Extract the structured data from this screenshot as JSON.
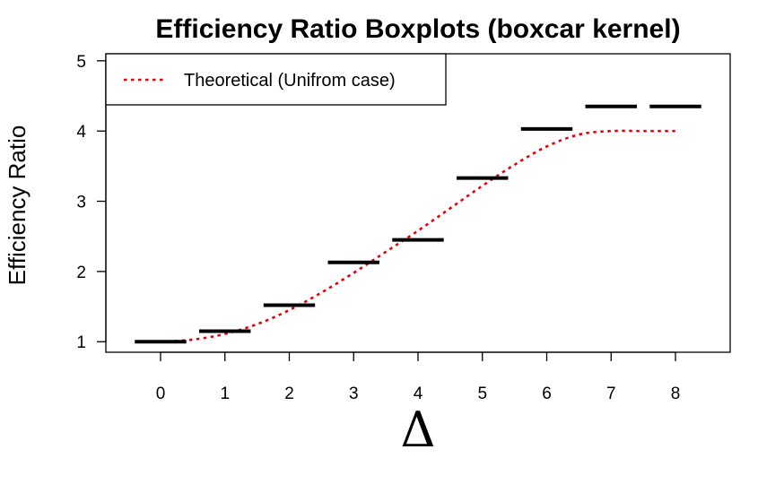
{
  "chart_data": {
    "type": "boxplot",
    "title": "Efficiency Ratio Boxplots (boxcar kernel)",
    "xlabel": "Δ",
    "ylabel": "Efficiency Ratio",
    "categories": [
      "0",
      "1",
      "2",
      "3",
      "4",
      "5",
      "6",
      "7",
      "8"
    ],
    "x": [
      0,
      1,
      2,
      3,
      4,
      5,
      6,
      7,
      8
    ],
    "medians": [
      1.0,
      1.15,
      1.52,
      2.13,
      2.45,
      3.33,
      4.03,
      4.35,
      4.35
    ],
    "yticks": [
      1,
      2,
      3,
      4,
      5
    ],
    "xlim": [
      -0.85,
      8.85
    ],
    "ylim": [
      0.85,
      5.1
    ],
    "theoretical": {
      "name": "Theoretical (Unifrom case)",
      "color": "#e8000b",
      "style": "dotted",
      "x": [
        0,
        0.5,
        1,
        1.5,
        2,
        2.5,
        3,
        3.5,
        4,
        4.5,
        5,
        5.5,
        6,
        6.5,
        7,
        7.5,
        8
      ],
      "y": [
        1.0,
        1.03,
        1.11,
        1.25,
        1.45,
        1.7,
        1.98,
        2.28,
        2.58,
        2.9,
        3.22,
        3.52,
        3.78,
        3.95,
        4.0,
        4.0,
        4.0
      ]
    },
    "legend": {
      "position": "top-left",
      "entries": [
        "Theoretical (Unifrom case)"
      ]
    },
    "grid": false
  }
}
